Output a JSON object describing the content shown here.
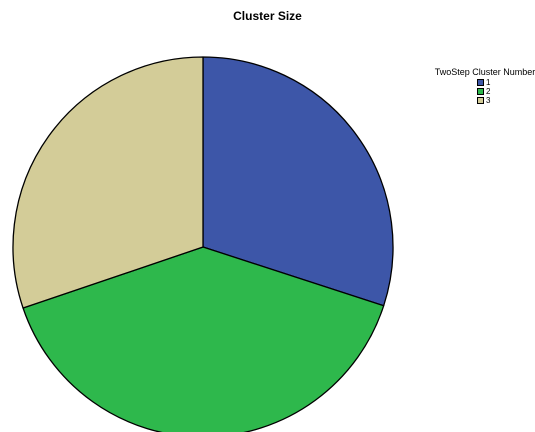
{
  "chart_data": {
    "type": "pie",
    "title": "Cluster Size",
    "legend": {
      "title": "TwoStep Cluster Number",
      "placement": "top-right"
    },
    "slices": [
      {
        "label": "1",
        "value": 30.0,
        "color": "#3d56a8"
      },
      {
        "label": "2",
        "value": 39.8,
        "color": "#2eb84c"
      },
      {
        "label": "3",
        "value": 30.2,
        "color": "#d3cc98"
      }
    ],
    "start_angle_deg": 0,
    "direction": "clockwise"
  }
}
